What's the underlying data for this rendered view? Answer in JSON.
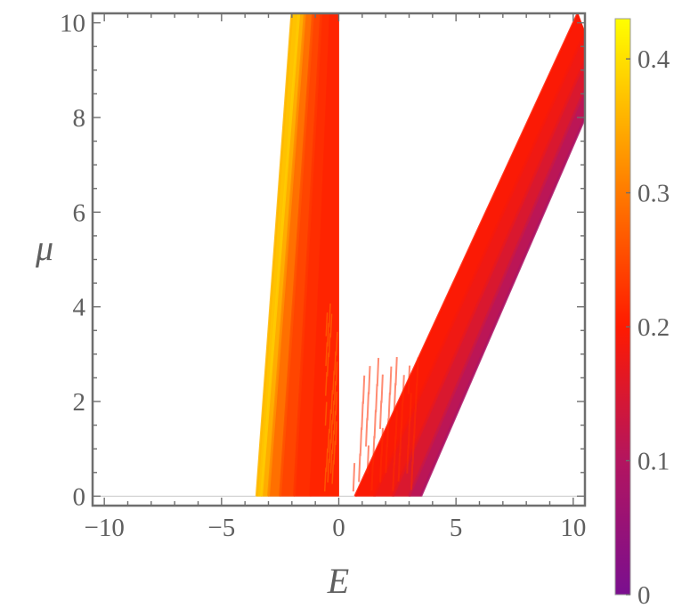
{
  "chart_data": {
    "type": "heatmap",
    "title": "",
    "xlabel": "E",
    "ylabel": "μ",
    "xlim": [
      -10.5,
      10.5
    ],
    "ylim": [
      -0.2,
      10.2
    ],
    "x_ticks": [
      -10,
      -5,
      0,
      5,
      10
    ],
    "x_tick_labels": [
      "−10",
      "−5",
      "0",
      "5",
      "10"
    ],
    "y_ticks": [
      0,
      2,
      4,
      6,
      8,
      10
    ],
    "y_tick_labels": [
      "0",
      "2",
      "4",
      "6",
      "8",
      "10"
    ],
    "grid": false,
    "baseline": {
      "mu": 0,
      "e_range": [
        -10.5,
        10.5
      ]
    },
    "bands": [
      {
        "name": "negative-energy-band",
        "outer_edge": [
          [
            -3.5,
            0
          ],
          [
            -2,
            10.2
          ]
        ],
        "inner_edge": [
          [
            0,
            0
          ],
          [
            0,
            10.2
          ]
        ],
        "value_at_outer": 0.35,
        "value_at_middle": 0.25,
        "value_at_inner": 0.2,
        "stripes": [
          {
            "bottom": [
              -3.5,
              0
            ],
            "top": [
              -2.0,
              10.2
            ],
            "value": 0.36
          },
          {
            "bottom": [
              -3.3,
              0
            ],
            "top": [
              -1.7,
              10.2
            ],
            "value": 0.38
          },
          {
            "bottom": [
              -3.0,
              0
            ],
            "top": [
              -1.45,
              10.2
            ],
            "value": 0.32
          },
          {
            "bottom": [
              -2.5,
              0
            ],
            "top": [
              -1.1,
              10.2
            ],
            "value": 0.26
          },
          {
            "bottom": [
              -1.9,
              0
            ],
            "top": [
              -0.75,
              10.2
            ],
            "value": 0.23
          },
          {
            "bottom": [
              -1.2,
              0
            ],
            "top": [
              -0.35,
              10.2
            ],
            "value": 0.21
          }
        ]
      },
      {
        "name": "positive-energy-band",
        "outer_edge": [
          [
            3.5,
            0
          ],
          [
            10.5,
            8.0
          ]
        ],
        "inner_edge": [
          [
            0.5,
            0
          ],
          [
            10.0,
            10.2
          ]
        ],
        "stripes": [
          {
            "bottom": [
              0.7,
              0
            ],
            "top": [
              10.2,
              10.2
            ],
            "value": 0.2
          },
          {
            "bottom": [
              1.5,
              0
            ],
            "top": [
              10.5,
              9.8
            ],
            "value": 0.19
          },
          {
            "bottom": [
              2.3,
              0
            ],
            "top": [
              10.5,
              9.2
            ],
            "value": 0.17
          },
          {
            "bottom": [
              3.0,
              0
            ],
            "top": [
              10.5,
              8.6
            ],
            "value": 0.13
          },
          {
            "bottom": [
              3.5,
              0
            ],
            "top": [
              10.5,
              8.0
            ],
            "value": 0.09
          }
        ]
      }
    ],
    "colorbar": {
      "range": [
        0,
        0.43
      ],
      "ticks": [
        0,
        0.1,
        0.2,
        0.3,
        0.4
      ],
      "tick_labels": [
        "0",
        "0.1",
        "0.2",
        "0.3",
        "0.4"
      ],
      "placement": "right",
      "stops": [
        {
          "value": 0,
          "color": "#7a0f8f"
        },
        {
          "value": 0.1,
          "color": "#b3155f"
        },
        {
          "value": 0.2,
          "color": "#ff1a00"
        },
        {
          "value": 0.3,
          "color": "#ff7a00"
        },
        {
          "value": 0.43,
          "color": "#ffff00"
        }
      ]
    }
  }
}
